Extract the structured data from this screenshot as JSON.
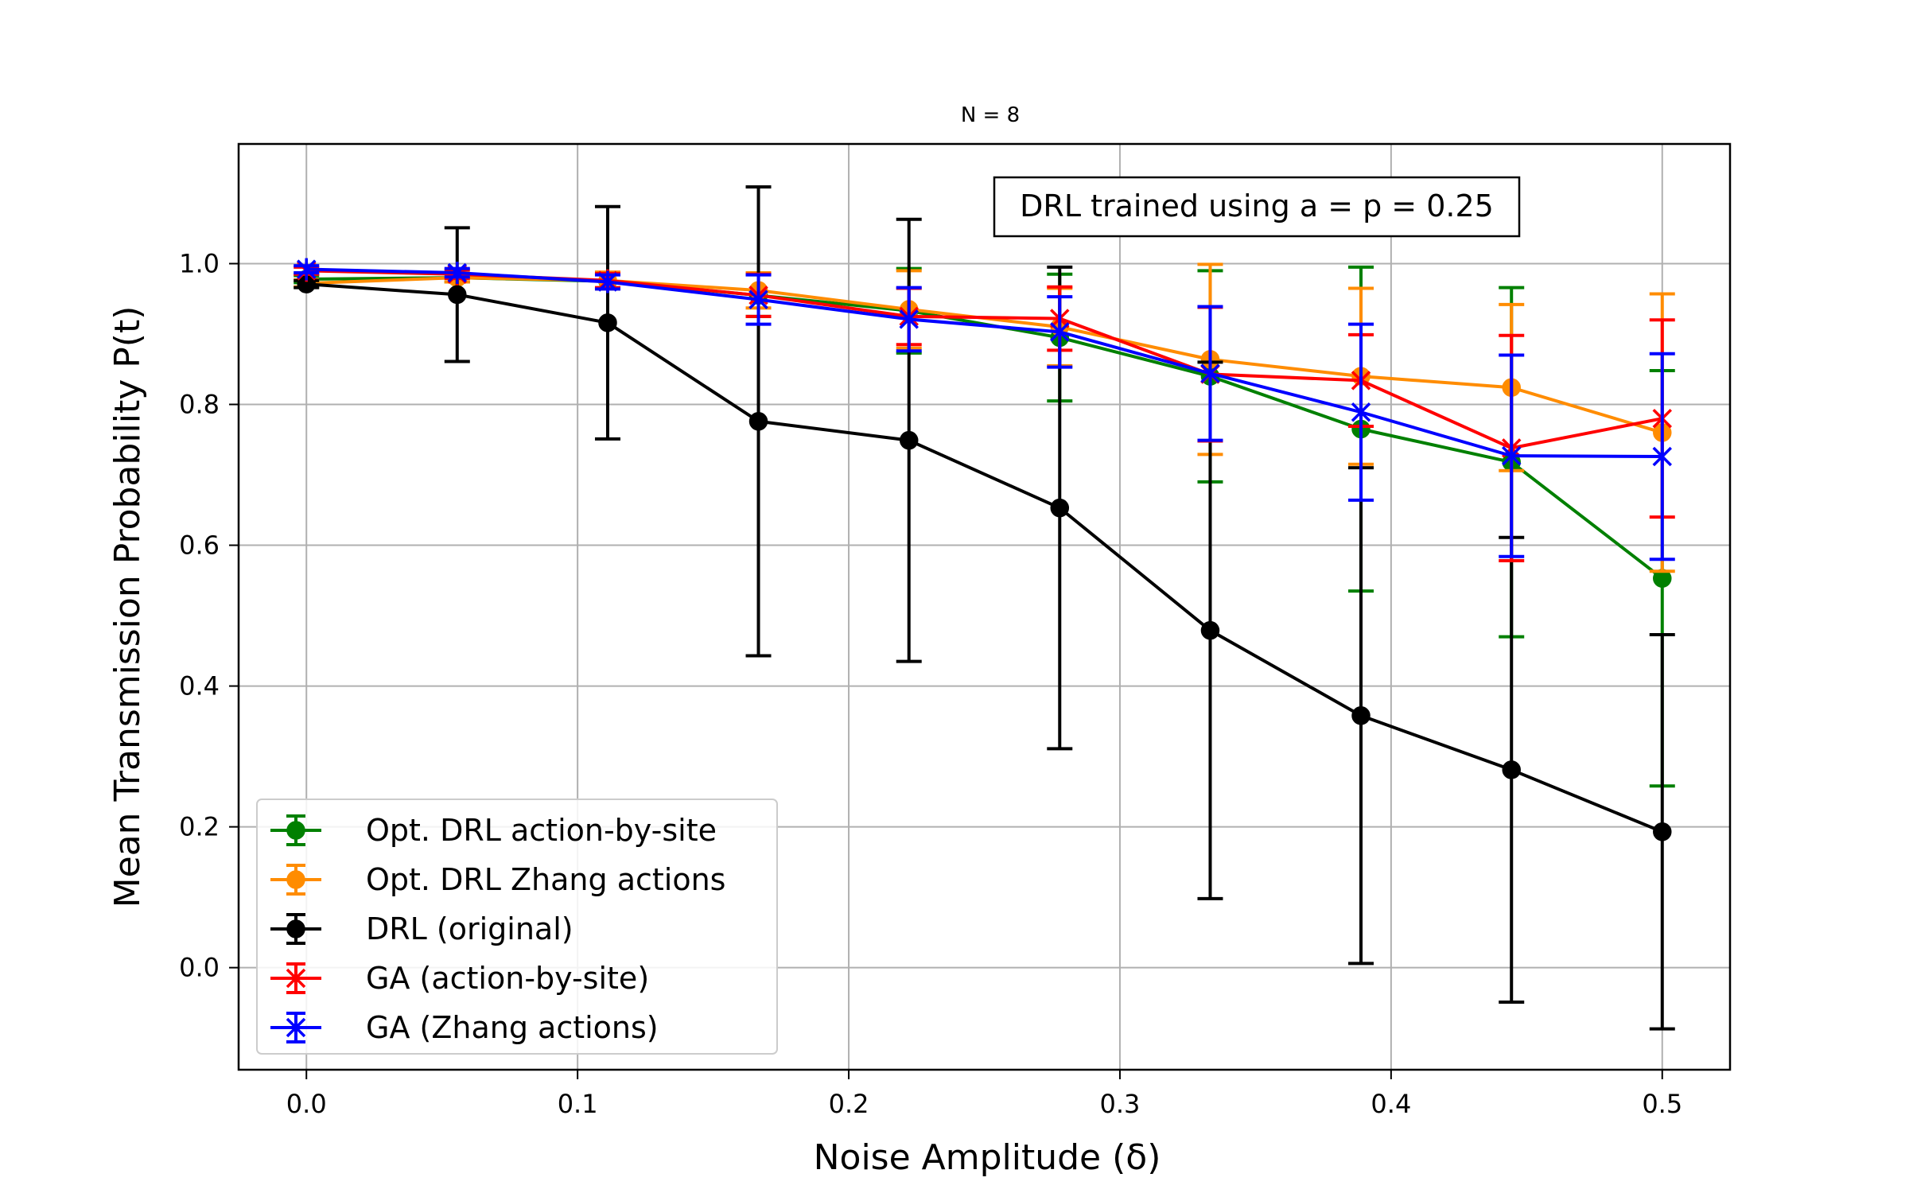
{
  "chart_data": {
    "type": "line",
    "title": "N = 8",
    "xlabel": "Noise Amplitude (δ)",
    "ylabel": "Mean Transmission Probability P(t)",
    "annotation": "DRL trained using a = p = 0.25",
    "xlim": [
      -0.025,
      0.525
    ],
    "ylim": [
      -0.145,
      1.17
    ],
    "x_ticks": [
      0.0,
      0.1,
      0.2,
      0.3,
      0.4,
      0.5
    ],
    "x_tick_labels": [
      "0.0",
      "0.1",
      "0.2",
      "0.3",
      "0.4",
      "0.5"
    ],
    "y_ticks": [
      0.0,
      0.2,
      0.4,
      0.6,
      0.8,
      1.0
    ],
    "y_tick_labels": [
      "0.0",
      "0.2",
      "0.4",
      "0.6",
      "0.8",
      "1.0"
    ],
    "grid": true,
    "legend_position": "lower-left",
    "x": [
      0.0,
      0.0556,
      0.1111,
      0.1667,
      0.2222,
      0.2778,
      0.3333,
      0.3889,
      0.4444,
      0.5
    ],
    "series": [
      {
        "name": "Opt. DRL action-by-site",
        "color": "#008000",
        "marker": "circle",
        "values": [
          0.978,
          0.98,
          0.975,
          0.955,
          0.933,
          0.895,
          0.84,
          0.765,
          0.718,
          0.553
        ],
        "errors": [
          0.005,
          0.006,
          0.01,
          0.03,
          0.06,
          0.09,
          0.15,
          0.23,
          0.248,
          0.295
        ]
      },
      {
        "name": "Opt. DRL Zhang actions",
        "color": "#FF8C00",
        "marker": "circle",
        "values": [
          0.972,
          0.98,
          0.976,
          0.962,
          0.935,
          0.91,
          0.864,
          0.84,
          0.824,
          0.76
        ],
        "errors": [
          0.005,
          0.006,
          0.012,
          0.025,
          0.055,
          0.055,
          0.135,
          0.125,
          0.118,
          0.197
        ]
      },
      {
        "name": "DRL (original)",
        "color": "#000000",
        "marker": "circle",
        "values": [
          0.971,
          0.956,
          0.916,
          0.776,
          0.749,
          0.653,
          0.479,
          0.358,
          0.281,
          0.193
        ],
        "errors": [
          0.005,
          0.095,
          0.165,
          0.333,
          0.314,
          0.342,
          0.381,
          0.352,
          0.33,
          0.28
        ]
      },
      {
        "name": "GA (action-by-site)",
        "color": "#FF0000",
        "marker": "x",
        "values": [
          0.99,
          0.985,
          0.976,
          0.955,
          0.925,
          0.922,
          0.843,
          0.834,
          0.738,
          0.78
        ],
        "errors": [
          0.005,
          0.006,
          0.01,
          0.03,
          0.04,
          0.045,
          0.095,
          0.065,
          0.16,
          0.14
        ]
      },
      {
        "name": "GA (Zhang actions)",
        "color": "#0000FF",
        "marker": "x",
        "values": [
          0.992,
          0.987,
          0.974,
          0.949,
          0.921,
          0.903,
          0.844,
          0.789,
          0.727,
          0.726
        ],
        "errors": [
          0.005,
          0.006,
          0.01,
          0.035,
          0.045,
          0.05,
          0.095,
          0.125,
          0.143,
          0.146
        ]
      }
    ]
  }
}
